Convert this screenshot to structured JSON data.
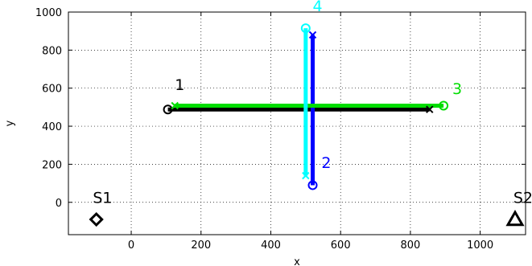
{
  "chart_data": {
    "type": "line",
    "xlabel": "x",
    "ylabel": "y",
    "xlim": [
      -180,
      1130
    ],
    "ylim": [
      -170,
      1000
    ],
    "xticks": [
      0,
      200,
      400,
      600,
      800,
      1000
    ],
    "yticks": [
      0,
      200,
      400,
      600,
      800,
      1000
    ],
    "grid": true,
    "series": [
      {
        "color": "#000000",
        "points": [
          [
            105,
            488
          ],
          [
            855,
            488
          ]
        ],
        "start_marker": "circle",
        "end_marker": "x"
      },
      {
        "color": "#0000ff",
        "points": [
          [
            520,
            90
          ],
          [
            520,
            880
          ]
        ],
        "start_marker": "circle",
        "end_marker": "x"
      },
      {
        "color": "#00dd00",
        "points": [
          [
            895,
            508
          ],
          [
            125,
            508
          ]
        ],
        "start_marker": "circle",
        "end_marker": "x"
      },
      {
        "color": "#00ffff",
        "points": [
          [
            500,
            915
          ],
          [
            500,
            140
          ]
        ],
        "start_marker": "circle",
        "end_marker": "x"
      }
    ],
    "annotations": [
      {
        "text": "1",
        "x": 125,
        "y": 590,
        "color": "#000000"
      },
      {
        "text": "2",
        "x": 545,
        "y": 180,
        "color": "#0000ff"
      },
      {
        "text": "3",
        "x": 920,
        "y": 570,
        "color": "#00dd00"
      },
      {
        "text": "4",
        "x": 520,
        "y": 1005,
        "color": "#00ffff"
      },
      {
        "text": "S1",
        "x": -110,
        "y": -3,
        "color": "#000000"
      },
      {
        "text": "S2",
        "x": 1095,
        "y": -3,
        "color": "#000000"
      }
    ],
    "sources": [
      {
        "name": "S1",
        "x": -100,
        "y": -90,
        "marker": "diamond",
        "color": "#000000"
      },
      {
        "name": "S2",
        "x": 1100,
        "y": -90,
        "marker": "triangle",
        "color": "#000000"
      }
    ]
  }
}
